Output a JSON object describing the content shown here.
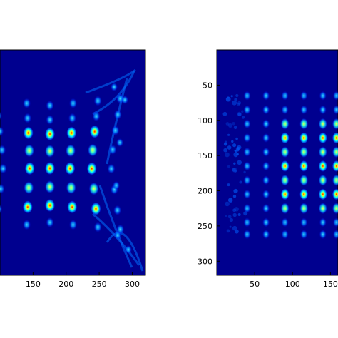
{
  "colors": {
    "background": "#00008f",
    "colormap": [
      "#00008f",
      "#0000ff",
      "#0080ff",
      "#00ffff",
      "#80ff80",
      "#ffff00",
      "#ff8000",
      "#ff0000",
      "#800000"
    ]
  },
  "chart_data": [
    {
      "type": "heatmap",
      "title": "",
      "xlabel": "",
      "ylabel": "",
      "xlim": [
        100,
        320
      ],
      "ylim": [
        0,
        320
      ],
      "x_ticks": [
        150,
        200,
        250,
        300
      ],
      "x_tick_labels": [
        "150",
        "200",
        "250",
        "300"
      ],
      "y_ticks": [],
      "y_tick_labels": [],
      "grid": false,
      "pattern": "distorted lattice of intensity spots, pincushion shaped, high peaks in central columns"
    },
    {
      "type": "heatmap",
      "title": "",
      "xlabel": "",
      "ylabel": "",
      "xlim": [
        0,
        160
      ],
      "ylim": [
        0,
        320
      ],
      "x_ticks": [
        50,
        100,
        150
      ],
      "x_tick_labels": [
        "50",
        "100",
        "150"
      ],
      "y_ticks": [
        50,
        100,
        150,
        200,
        250,
        300
      ],
      "y_tick_labels": [
        "50",
        "100",
        "150",
        "200",
        "250",
        "300"
      ],
      "grid": false,
      "pattern": "rectangular lattice of intensity spots, slightly blurred on left edge"
    }
  ]
}
